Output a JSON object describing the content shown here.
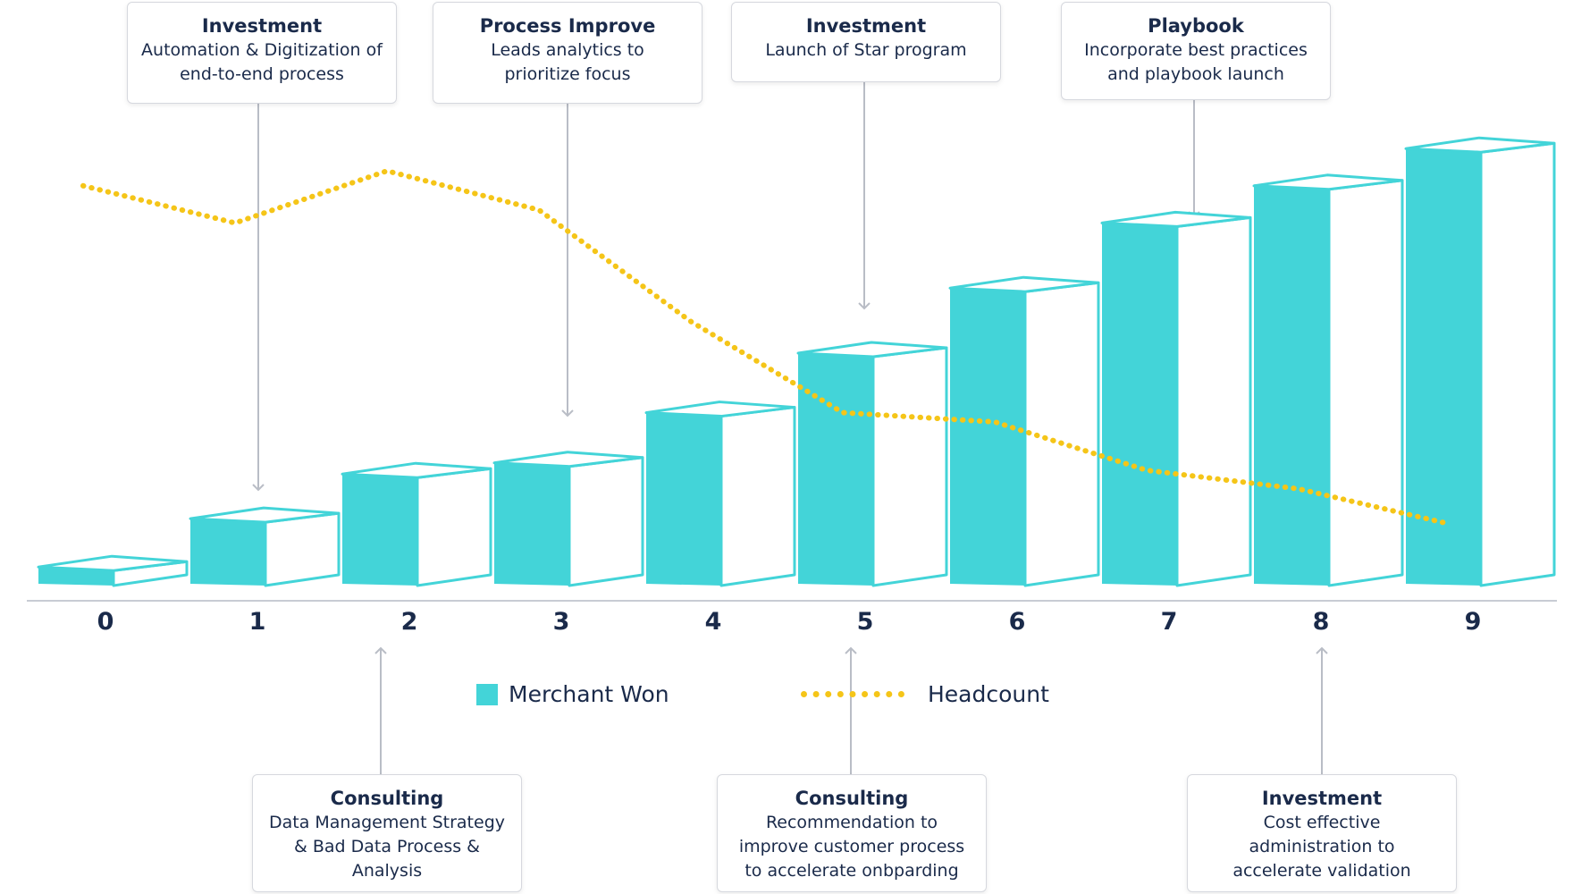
{
  "colors": {
    "bar_front": "#43d4d8",
    "bar_outline": "#43d4d8",
    "headcount_line": "#f5c518",
    "axis": "#c8ccd4",
    "text": "#1a2a4a",
    "arrow": "#b9bdc6",
    "callout_border": "#d6d8de"
  },
  "chart_data": {
    "type": "bar",
    "categories": [
      "0",
      "1",
      "2",
      "3",
      "4",
      "5",
      "6",
      "7",
      "8",
      "9"
    ],
    "series": [
      {
        "name": "Merchant Won",
        "values": [
          1,
          3.6,
          6,
          6.6,
          9.3,
          12.5,
          16,
          19.5,
          21.5,
          23.5
        ]
      },
      {
        "name": "Headcount",
        "values": [
          21.5,
          19.5,
          22.3,
          20.2,
          14.2,
          9.3,
          8.8,
          6.2,
          5.2,
          3.3
        ]
      }
    ],
    "xlabel": "",
    "ylabel": "",
    "ylim": [
      0,
      25
    ],
    "grid": false,
    "legend_position": "bottom-center",
    "legend": [
      {
        "label": "Merchant Won",
        "type": "bar"
      },
      {
        "label": "Headcount",
        "type": "line"
      }
    ]
  },
  "callouts_top": [
    {
      "title": "Investment",
      "text": "Automation & Digitization of end-to-end process",
      "target": "1"
    },
    {
      "title": "Process Improve",
      "text": "Leads analytics to prioritize focus",
      "target": "3"
    },
    {
      "title": "Investment",
      "text": "Launch of Star program",
      "target": "5"
    },
    {
      "title": "Playbook",
      "text": "Incorporate best practices and playbook launch",
      "target": "7"
    }
  ],
  "callouts_bottom": [
    {
      "title": "Consulting",
      "text": "Data Management Strategy & Bad Data Process & Analysis",
      "target": "2"
    },
    {
      "title": "Consulting",
      "text": "Recommendation to improve customer process to accelerate onbparding",
      "target": "5"
    },
    {
      "title": "Investment",
      "text": "Cost effective administration to accelerate validation",
      "target": "8"
    }
  ]
}
